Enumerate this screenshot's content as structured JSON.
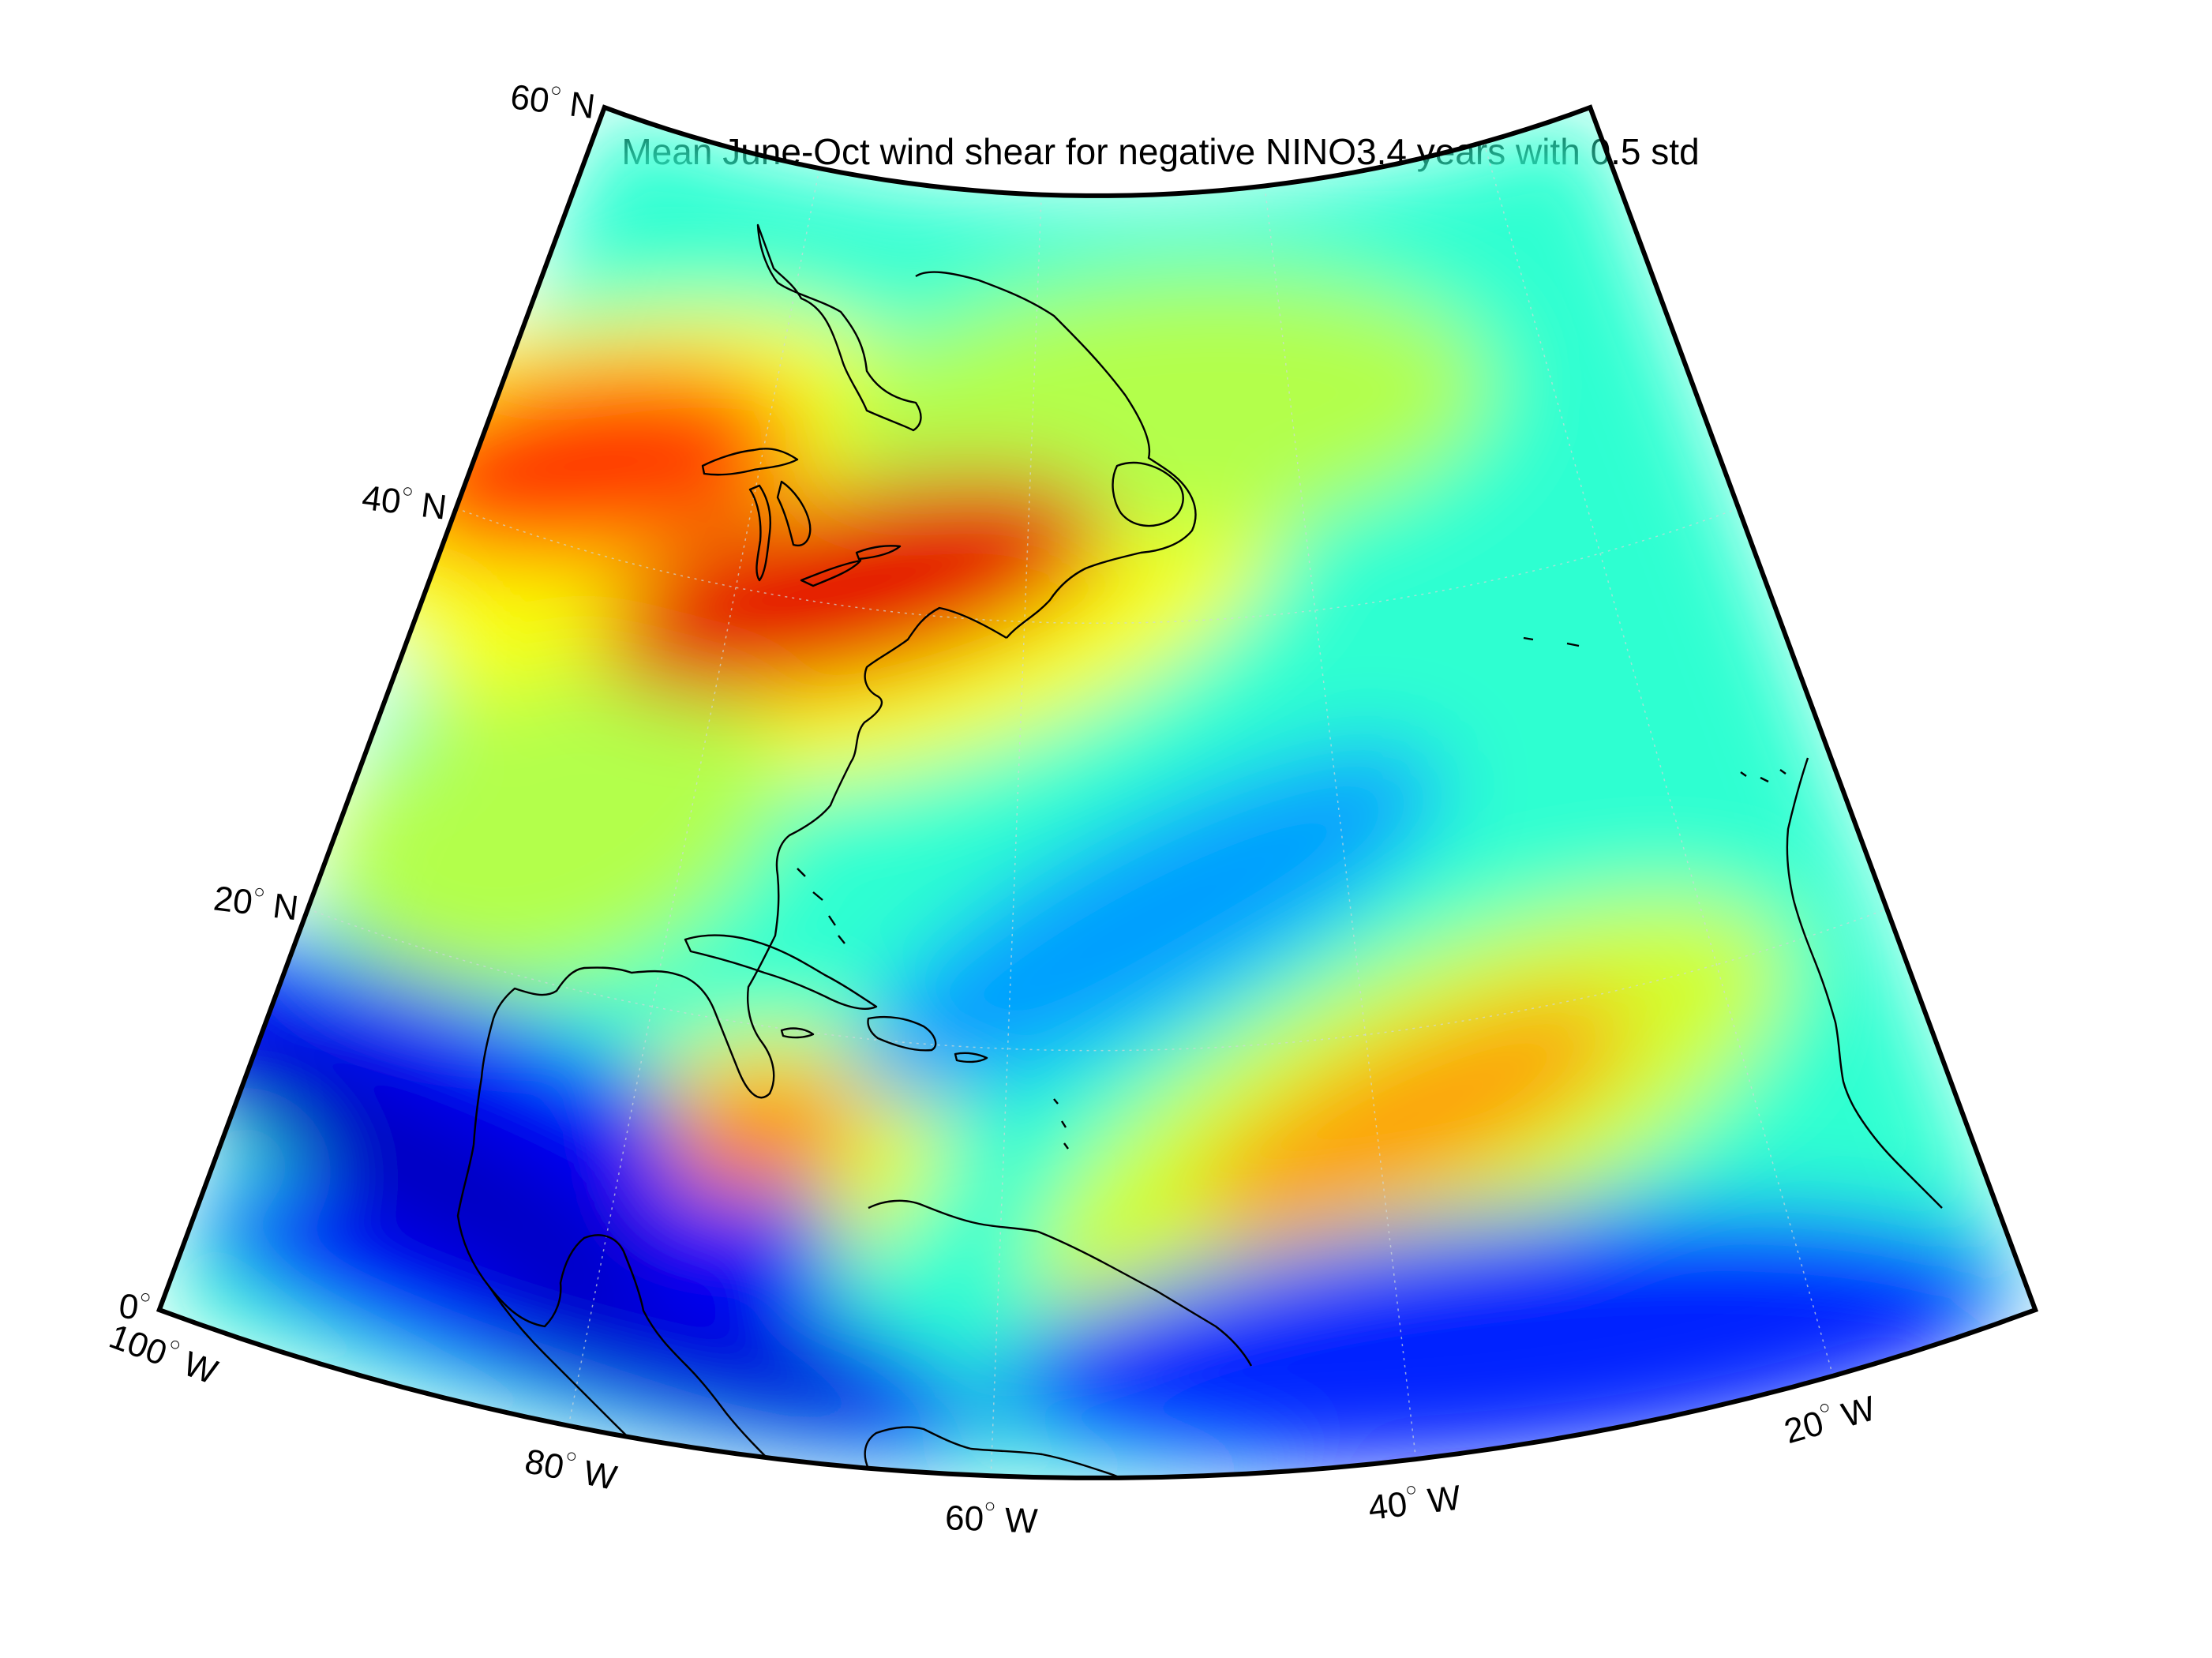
{
  "title": "Mean June-Oct wind shear for negative NINO3.4 years with 0.5 std",
  "projection": "conic",
  "extent": {
    "lon_min": -100,
    "lon_max": -10,
    "lat_min": 0,
    "lat_max": 60
  },
  "colormap": "jet",
  "colorbar": "none",
  "grid": true,
  "lat_ticks": [
    {
      "lat": 60,
      "label": "60",
      "hemi": "N"
    },
    {
      "lat": 40,
      "label": "40",
      "hemi": "N"
    },
    {
      "lat": 20,
      "label": "20",
      "hemi": "N"
    },
    {
      "lat": 0,
      "label": "0",
      "hemi": ""
    }
  ],
  "lon_ticks": [
    {
      "lon": -100,
      "label": "100",
      "hemi": "W"
    },
    {
      "lon": -80,
      "label": "80",
      "hemi": "W"
    },
    {
      "lon": -60,
      "label": "60",
      "hemi": "W"
    },
    {
      "lon": -40,
      "label": "40",
      "hemi": "W"
    },
    {
      "lon": -20,
      "label": "20",
      "hemi": "W"
    }
  ],
  "regions": [
    {
      "name": "northeast-us-high",
      "lon": -72,
      "lat": 41,
      "level": 0.92
    },
    {
      "name": "great-lakes-high",
      "lon": -90,
      "lat": 43,
      "level": 0.82
    },
    {
      "name": "tropical-atlantic-high",
      "lon": -38,
      "lat": 16,
      "level": 0.72
    },
    {
      "name": "caribbean-high",
      "lon": -73,
      "lat": 15,
      "level": 0.72
    },
    {
      "name": "subtropical-atlantic-low",
      "lon": -52,
      "lat": 26,
      "level": 0.25
    },
    {
      "name": "pacific-central-america-low",
      "lon": -88,
      "lat": 12,
      "level": 0.05
    },
    {
      "name": "equatorial-atlantic-low",
      "lon": -35,
      "lat": 5,
      "level": 0.08
    }
  ]
}
